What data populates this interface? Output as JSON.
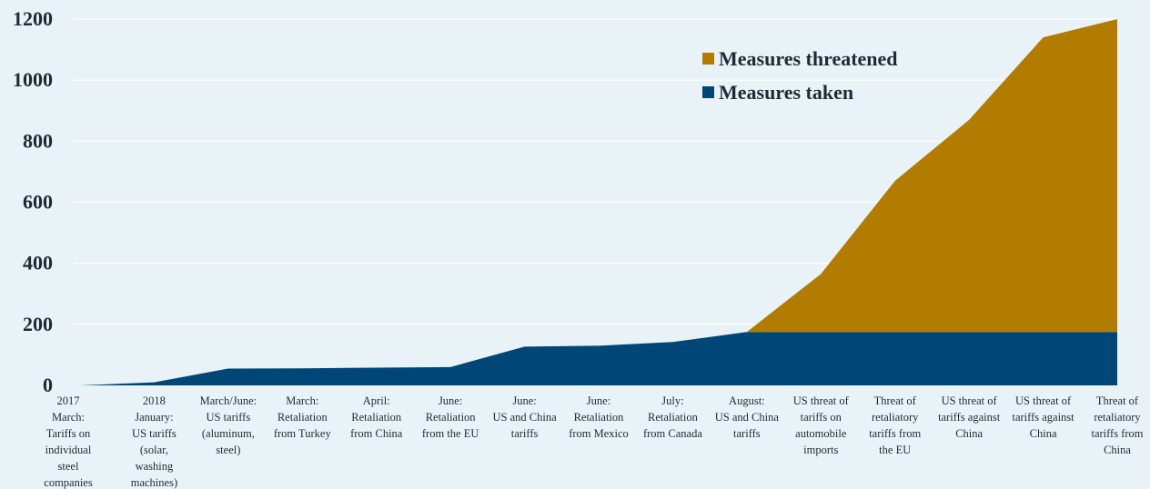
{
  "chart_data": {
    "type": "area",
    "stacked": true,
    "ylim": [
      0,
      1200
    ],
    "yticks": [
      0,
      200,
      400,
      600,
      800,
      1000,
      1200
    ],
    "grid": true,
    "legend_position": "top-right",
    "categories": [
      [
        "2017",
        "March:",
        "Tariffs on",
        "individual",
        "steel",
        "companies"
      ],
      [
        "2018",
        "January:",
        "US tariffs",
        "(solar,",
        "washing",
        "machines)"
      ],
      [
        "March/June:",
        "US tariffs",
        "(aluminum,",
        "steel)"
      ],
      [
        "March:",
        "Retaliation",
        "from Turkey"
      ],
      [
        "April:",
        "Retaliation",
        "from China"
      ],
      [
        "June:",
        "Retaliation",
        "from the EU"
      ],
      [
        "June:",
        "US and China",
        "tariffs"
      ],
      [
        "June:",
        "Retaliation",
        "from Mexico"
      ],
      [
        "July:",
        "Retaliation",
        "from Canada"
      ],
      [
        "August:",
        "US and China",
        "tariffs"
      ],
      [
        "US threat of",
        "tariffs on",
        "automobile",
        "imports"
      ],
      [
        "Threat of",
        "retaliatory",
        "tariffs from",
        "the EU"
      ],
      [
        "US threat of",
        "tariffs against",
        "China"
      ],
      [
        "US threat of",
        "tariffs against",
        "China"
      ],
      [
        "Threat of",
        "retaliatory",
        "tariffs from",
        "China"
      ]
    ],
    "series": [
      {
        "name": "Measures taken",
        "color": "#004778",
        "values": [
          0,
          10,
          55,
          56,
          58,
          60,
          127,
          130,
          142,
          175,
          175,
          175,
          175,
          175,
          175
        ]
      },
      {
        "name": "Measures threatened",
        "color": "#b27c00",
        "values": [
          0,
          0,
          0,
          0,
          0,
          0,
          0,
          0,
          0,
          0,
          190,
          495,
          695,
          965,
          1025
        ]
      }
    ]
  }
}
